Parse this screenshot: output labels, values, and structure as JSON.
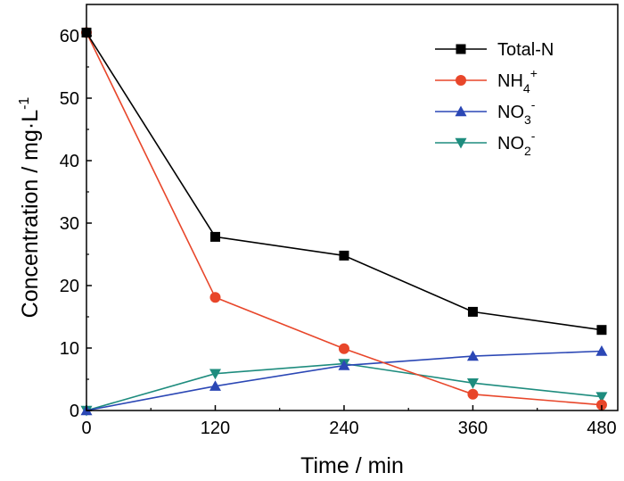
{
  "chart_data": {
    "type": "line",
    "title": "",
    "xlabel": "Time / min",
    "ylabel": "Concentration / mg·L",
    "ylabel_superscript": "-1",
    "x": [
      0,
      120,
      240,
      360,
      480
    ],
    "xlim": [
      0,
      495
    ],
    "ylim": [
      0,
      65
    ],
    "xticks": [
      0,
      120,
      240,
      360,
      480
    ],
    "yticks": [
      0,
      10,
      20,
      30,
      40,
      50,
      60
    ],
    "grid": false,
    "legend_position": "top-right",
    "series": [
      {
        "name": "Total-N",
        "name_parts": {
          "base": "Total-N",
          "sub": "",
          "sup": ""
        },
        "color": "#000000",
        "marker": "square",
        "values": [
          60.5,
          27.8,
          24.8,
          15.8,
          12.9
        ]
      },
      {
        "name": "NH4+",
        "name_parts": {
          "base": "NH",
          "sub": "4",
          "sup": "+"
        },
        "color": "#E8462A",
        "marker": "circle",
        "values": [
          60.5,
          18.1,
          9.9,
          2.6,
          0.9
        ]
      },
      {
        "name": "NO3-",
        "name_parts": {
          "base": "NO",
          "sub": "3",
          "sup": "-"
        },
        "color": "#2B47B5",
        "marker": "triangle-up",
        "values": [
          0,
          3.9,
          7.2,
          8.7,
          9.5
        ]
      },
      {
        "name": "NO2-",
        "name_parts": {
          "base": "NO",
          "sub": "2",
          "sup": "-"
        },
        "color": "#1E8C7E",
        "marker": "triangle-down",
        "values": [
          0,
          5.9,
          7.5,
          4.4,
          2.2
        ]
      }
    ]
  }
}
